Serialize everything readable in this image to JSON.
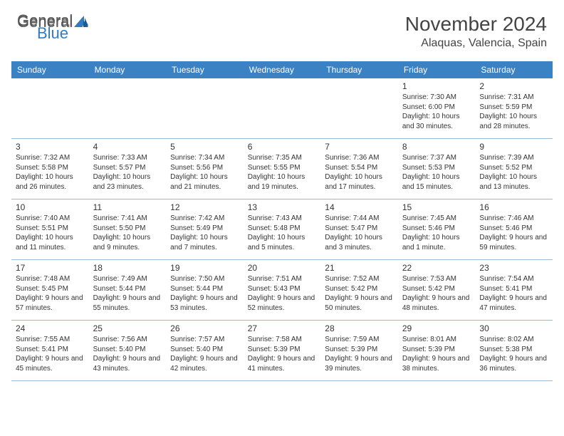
{
  "logo": {
    "text1": "General",
    "text2": "Blue",
    "icon_color": "#2f7cc4"
  },
  "title": "November 2024",
  "location": "Alaquas, Valencia, Spain",
  "colors": {
    "header_bg": "#3b82c4",
    "header_text": "#ffffff",
    "border": "#9bb8d4",
    "text": "#333333",
    "background": "#ffffff"
  },
  "day_labels": [
    "Sunday",
    "Monday",
    "Tuesday",
    "Wednesday",
    "Thursday",
    "Friday",
    "Saturday"
  ],
  "weeks": [
    [
      null,
      null,
      null,
      null,
      null,
      {
        "n": "1",
        "sr": "Sunrise: 7:30 AM",
        "ss": "Sunset: 6:00 PM",
        "dl": "Daylight: 10 hours and 30 minutes."
      },
      {
        "n": "2",
        "sr": "Sunrise: 7:31 AM",
        "ss": "Sunset: 5:59 PM",
        "dl": "Daylight: 10 hours and 28 minutes."
      }
    ],
    [
      {
        "n": "3",
        "sr": "Sunrise: 7:32 AM",
        "ss": "Sunset: 5:58 PM",
        "dl": "Daylight: 10 hours and 26 minutes."
      },
      {
        "n": "4",
        "sr": "Sunrise: 7:33 AM",
        "ss": "Sunset: 5:57 PM",
        "dl": "Daylight: 10 hours and 23 minutes."
      },
      {
        "n": "5",
        "sr": "Sunrise: 7:34 AM",
        "ss": "Sunset: 5:56 PM",
        "dl": "Daylight: 10 hours and 21 minutes."
      },
      {
        "n": "6",
        "sr": "Sunrise: 7:35 AM",
        "ss": "Sunset: 5:55 PM",
        "dl": "Daylight: 10 hours and 19 minutes."
      },
      {
        "n": "7",
        "sr": "Sunrise: 7:36 AM",
        "ss": "Sunset: 5:54 PM",
        "dl": "Daylight: 10 hours and 17 minutes."
      },
      {
        "n": "8",
        "sr": "Sunrise: 7:37 AM",
        "ss": "Sunset: 5:53 PM",
        "dl": "Daylight: 10 hours and 15 minutes."
      },
      {
        "n": "9",
        "sr": "Sunrise: 7:39 AM",
        "ss": "Sunset: 5:52 PM",
        "dl": "Daylight: 10 hours and 13 minutes."
      }
    ],
    [
      {
        "n": "10",
        "sr": "Sunrise: 7:40 AM",
        "ss": "Sunset: 5:51 PM",
        "dl": "Daylight: 10 hours and 11 minutes."
      },
      {
        "n": "11",
        "sr": "Sunrise: 7:41 AM",
        "ss": "Sunset: 5:50 PM",
        "dl": "Daylight: 10 hours and 9 minutes."
      },
      {
        "n": "12",
        "sr": "Sunrise: 7:42 AM",
        "ss": "Sunset: 5:49 PM",
        "dl": "Daylight: 10 hours and 7 minutes."
      },
      {
        "n": "13",
        "sr": "Sunrise: 7:43 AM",
        "ss": "Sunset: 5:48 PM",
        "dl": "Daylight: 10 hours and 5 minutes."
      },
      {
        "n": "14",
        "sr": "Sunrise: 7:44 AM",
        "ss": "Sunset: 5:47 PM",
        "dl": "Daylight: 10 hours and 3 minutes."
      },
      {
        "n": "15",
        "sr": "Sunrise: 7:45 AM",
        "ss": "Sunset: 5:46 PM",
        "dl": "Daylight: 10 hours and 1 minute."
      },
      {
        "n": "16",
        "sr": "Sunrise: 7:46 AM",
        "ss": "Sunset: 5:46 PM",
        "dl": "Daylight: 9 hours and 59 minutes."
      }
    ],
    [
      {
        "n": "17",
        "sr": "Sunrise: 7:48 AM",
        "ss": "Sunset: 5:45 PM",
        "dl": "Daylight: 9 hours and 57 minutes."
      },
      {
        "n": "18",
        "sr": "Sunrise: 7:49 AM",
        "ss": "Sunset: 5:44 PM",
        "dl": "Daylight: 9 hours and 55 minutes."
      },
      {
        "n": "19",
        "sr": "Sunrise: 7:50 AM",
        "ss": "Sunset: 5:44 PM",
        "dl": "Daylight: 9 hours and 53 minutes."
      },
      {
        "n": "20",
        "sr": "Sunrise: 7:51 AM",
        "ss": "Sunset: 5:43 PM",
        "dl": "Daylight: 9 hours and 52 minutes."
      },
      {
        "n": "21",
        "sr": "Sunrise: 7:52 AM",
        "ss": "Sunset: 5:42 PM",
        "dl": "Daylight: 9 hours and 50 minutes."
      },
      {
        "n": "22",
        "sr": "Sunrise: 7:53 AM",
        "ss": "Sunset: 5:42 PM",
        "dl": "Daylight: 9 hours and 48 minutes."
      },
      {
        "n": "23",
        "sr": "Sunrise: 7:54 AM",
        "ss": "Sunset: 5:41 PM",
        "dl": "Daylight: 9 hours and 47 minutes."
      }
    ],
    [
      {
        "n": "24",
        "sr": "Sunrise: 7:55 AM",
        "ss": "Sunset: 5:41 PM",
        "dl": "Daylight: 9 hours and 45 minutes."
      },
      {
        "n": "25",
        "sr": "Sunrise: 7:56 AM",
        "ss": "Sunset: 5:40 PM",
        "dl": "Daylight: 9 hours and 43 minutes."
      },
      {
        "n": "26",
        "sr": "Sunrise: 7:57 AM",
        "ss": "Sunset: 5:40 PM",
        "dl": "Daylight: 9 hours and 42 minutes."
      },
      {
        "n": "27",
        "sr": "Sunrise: 7:58 AM",
        "ss": "Sunset: 5:39 PM",
        "dl": "Daylight: 9 hours and 41 minutes."
      },
      {
        "n": "28",
        "sr": "Sunrise: 7:59 AM",
        "ss": "Sunset: 5:39 PM",
        "dl": "Daylight: 9 hours and 39 minutes."
      },
      {
        "n": "29",
        "sr": "Sunrise: 8:01 AM",
        "ss": "Sunset: 5:39 PM",
        "dl": "Daylight: 9 hours and 38 minutes."
      },
      {
        "n": "30",
        "sr": "Sunrise: 8:02 AM",
        "ss": "Sunset: 5:38 PM",
        "dl": "Daylight: 9 hours and 36 minutes."
      }
    ]
  ]
}
